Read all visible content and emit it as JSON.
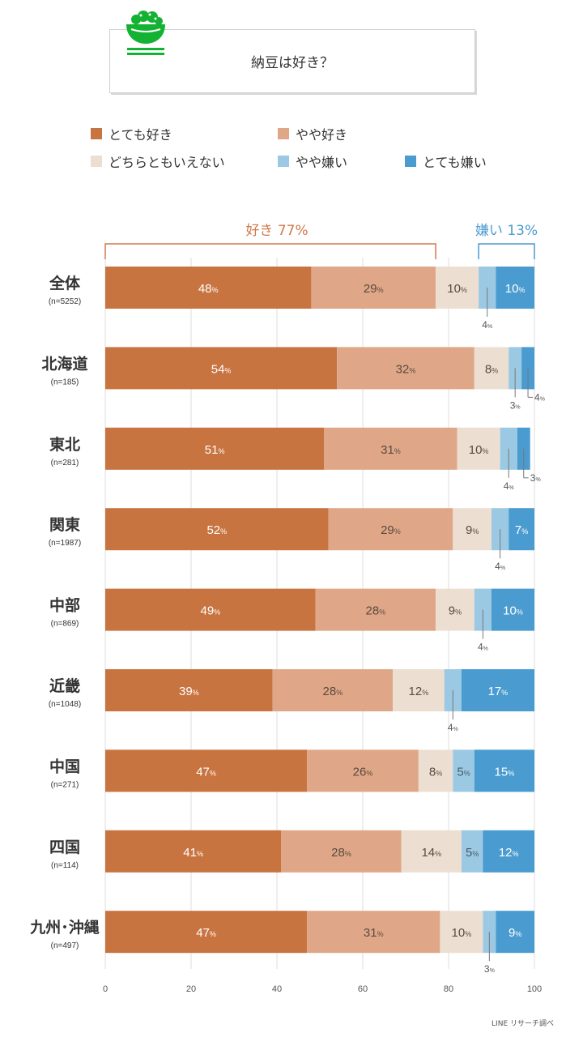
{
  "title": "納豆は好き？",
  "colors": {
    "very_like": "#c87441",
    "like": "#dfa787",
    "neutral": "#ecdfd2",
    "dislike": "#9bc9e3",
    "very_dislike": "#4a9bcf",
    "icon_green": "#14b232",
    "like_bracket": "#d0794b",
    "dislike_bracket": "#4a9bcf"
  },
  "legend": [
    {
      "label": "とても好き",
      "color": "#c87441"
    },
    {
      "label": "やや好き",
      "color": "#dfa787"
    },
    {
      "label": "どちらともいえない",
      "color": "#ecdfd2"
    },
    {
      "label": "やや嫌い",
      "color": "#9bc9e3"
    },
    {
      "label": "とても嫌い",
      "color": "#4a9bcf"
    }
  ],
  "summary": {
    "like_label": "好き 77%",
    "dislike_label": "嫌い 13%"
  },
  "source": "LINE リサーチ調べ",
  "chart_data": {
    "type": "bar",
    "orientation": "horizontal",
    "stacked": true,
    "xlim": [
      0,
      100
    ],
    "x_ticks": [
      "0",
      "20",
      "40",
      "60",
      "80",
      "100"
    ],
    "grid": true,
    "unit": "%",
    "categories": [
      {
        "name": "全体",
        "n": "(n=5252)"
      },
      {
        "name": "北海道",
        "n": "(n=185)"
      },
      {
        "name": "東北",
        "n": "(n=281)"
      },
      {
        "name": "関東",
        "n": "(n=1987)"
      },
      {
        "name": "中部",
        "n": "(n=869)"
      },
      {
        "name": "近畿",
        "n": "(n=1048)"
      },
      {
        "name": "中国",
        "n": "(n=271)"
      },
      {
        "name": "四国",
        "n": "(n=114)"
      },
      {
        "name": "九州･沖縄",
        "n": "(n=497)"
      }
    ],
    "series": [
      {
        "name": "とても好き",
        "values": [
          48,
          54,
          51,
          52,
          49,
          39,
          47,
          41,
          47
        ]
      },
      {
        "name": "やや好き",
        "values": [
          29,
          32,
          31,
          29,
          28,
          28,
          26,
          28,
          31
        ]
      },
      {
        "name": "どちらともいえない",
        "values": [
          10,
          8,
          10,
          9,
          9,
          12,
          8,
          14,
          10
        ]
      },
      {
        "name": "やや嫌い",
        "values": [
          4,
          3,
          4,
          4,
          4,
          4,
          5,
          5,
          3
        ]
      },
      {
        "name": "とても嫌い",
        "values": [
          10,
          4,
          3,
          7,
          10,
          17,
          15,
          12,
          9
        ]
      }
    ]
  }
}
